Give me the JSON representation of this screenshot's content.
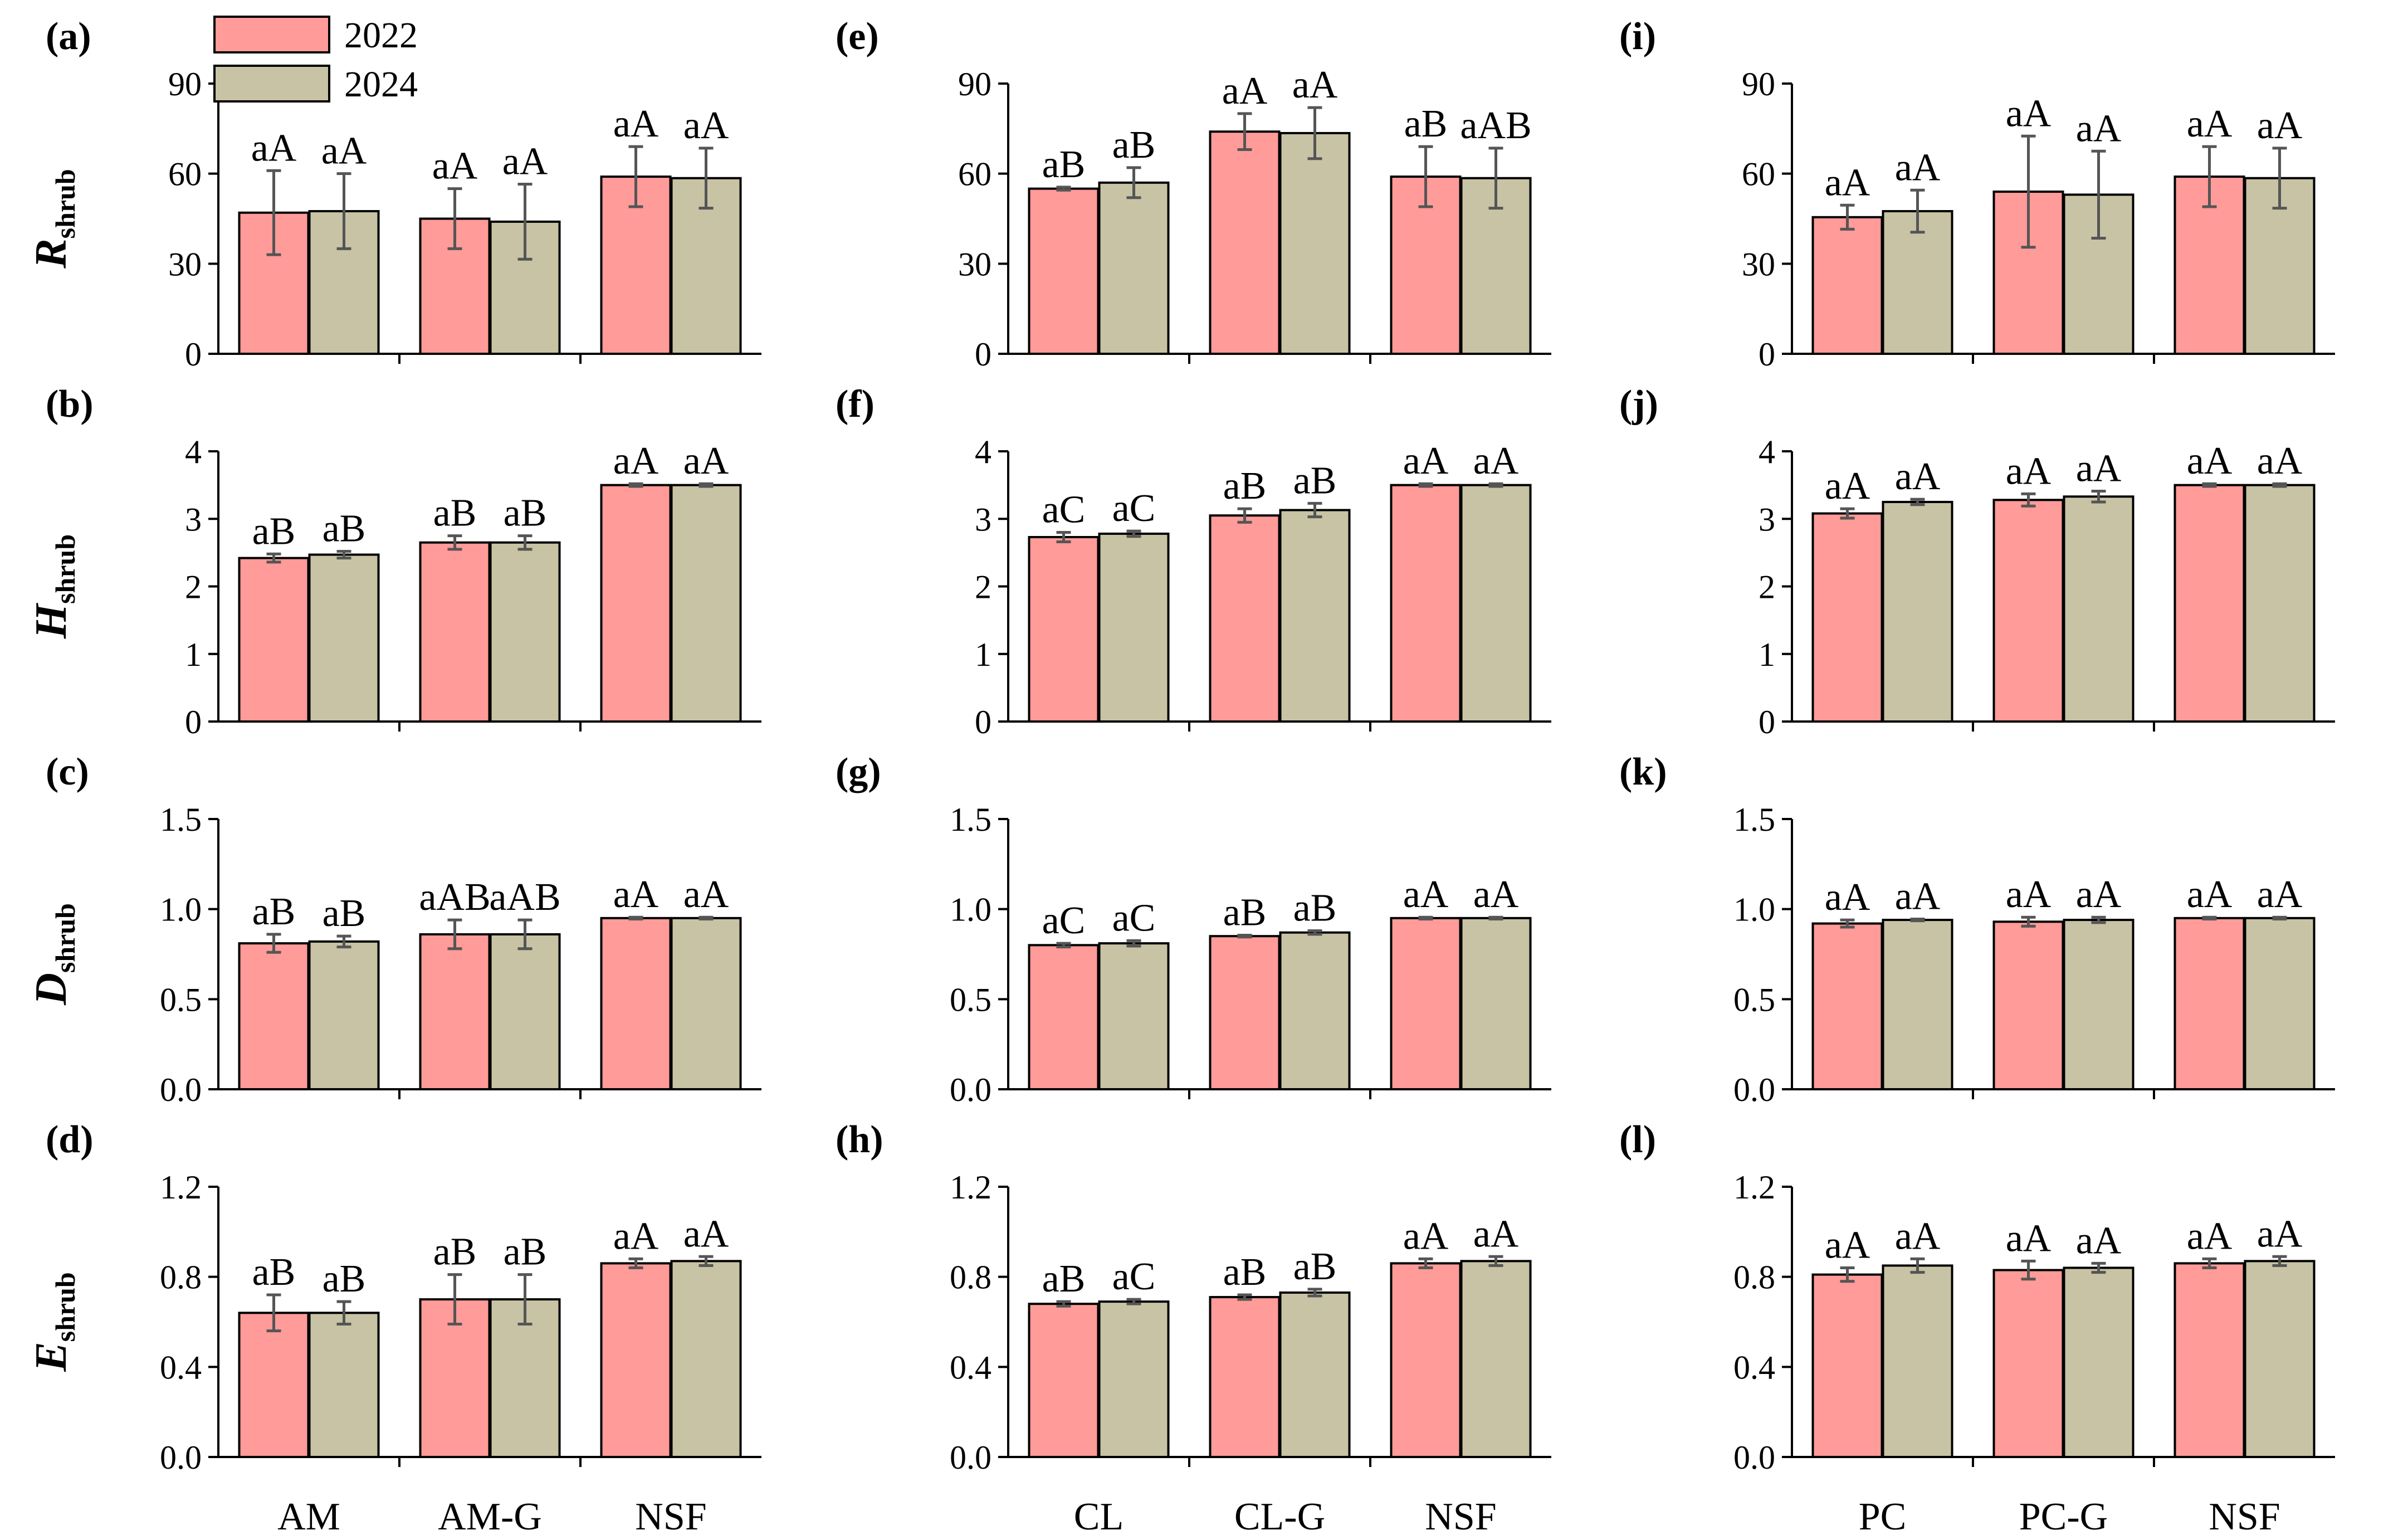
{
  "colors": {
    "y2022": "#FF9B98",
    "y2024": "#C7C3A4",
    "axis": "#000000",
    "error": "#555555"
  },
  "legend": {
    "items": [
      {
        "label": "2022",
        "color": "#FF9B98"
      },
      {
        "label": "2024",
        "color": "#C7C3A4"
      }
    ]
  },
  "chart_data": [
    {
      "type": "bar",
      "panel": "(a)",
      "ylabel": "R",
      "ylabel_sub": "shrub",
      "ylim": [
        0,
        90
      ],
      "yticks": [
        "0",
        "30",
        "60",
        "90"
      ],
      "categories": [
        "AM",
        "AM-G",
        "NSF"
      ],
      "series": [
        {
          "name": "2022",
          "values": [
            47,
            45,
            59
          ],
          "errors": [
            14,
            10,
            10
          ],
          "labels": [
            "aA",
            "aA",
            "aA"
          ]
        },
        {
          "name": "2024",
          "values": [
            47.5,
            44,
            58.5
          ],
          "errors": [
            12.5,
            12.5,
            10
          ],
          "labels": [
            "aA",
            "aA",
            "aA"
          ]
        }
      ]
    },
    {
      "type": "bar",
      "panel": "(b)",
      "ylabel": "H",
      "ylabel_sub": "shrub",
      "ylim": [
        0,
        4
      ],
      "yticks": [
        "0",
        "1",
        "2",
        "3",
        "4"
      ],
      "categories": [
        "AM",
        "AM-G",
        "NSF"
      ],
      "series": [
        {
          "name": "2022",
          "values": [
            2.42,
            2.65,
            3.5
          ],
          "errors": [
            0.06,
            0.1,
            0.02
          ],
          "labels": [
            "aB",
            "aB",
            "aA"
          ]
        },
        {
          "name": "2024",
          "values": [
            2.47,
            2.65,
            3.5
          ],
          "errors": [
            0.05,
            0.1,
            0.02
          ],
          "labels": [
            "aB",
            "aB",
            "aA"
          ]
        }
      ]
    },
    {
      "type": "bar",
      "panel": "(c)",
      "ylabel": "D",
      "ylabel_sub": "shrub",
      "ylim": [
        0,
        1.5
      ],
      "yticks": [
        "0.0",
        "0.5",
        "1.0",
        "1.5"
      ],
      "categories": [
        "AM",
        "AM-G",
        "NSF"
      ],
      "series": [
        {
          "name": "2022",
          "values": [
            0.81,
            0.86,
            0.95
          ],
          "errors": [
            0.05,
            0.08,
            0.005
          ],
          "labels": [
            "aB",
            "aAB",
            "aA"
          ]
        },
        {
          "name": "2024",
          "values": [
            0.82,
            0.86,
            0.95
          ],
          "errors": [
            0.03,
            0.08,
            0.005
          ],
          "labels": [
            "aB",
            "aAB",
            "aA"
          ]
        }
      ]
    },
    {
      "type": "bar",
      "panel": "(d)",
      "ylabel": "E",
      "ylabel_sub": "shrub",
      "ylim": [
        0,
        1.2
      ],
      "yticks": [
        "0.0",
        "0.4",
        "0.8",
        "1.2"
      ],
      "categories": [
        "AM",
        "AM-G",
        "NSF"
      ],
      "series": [
        {
          "name": "2022",
          "values": [
            0.64,
            0.7,
            0.86
          ],
          "errors": [
            0.08,
            0.11,
            0.02
          ],
          "labels": [
            "aB",
            "aB",
            "aA"
          ]
        },
        {
          "name": "2024",
          "values": [
            0.64,
            0.7,
            0.87
          ],
          "errors": [
            0.05,
            0.11,
            0.02
          ],
          "labels": [
            "aB",
            "aB",
            "aA"
          ]
        }
      ]
    },
    {
      "type": "bar",
      "panel": "(e)",
      "ylabel": "",
      "ylabel_sub": "",
      "ylim": [
        0,
        90
      ],
      "yticks": [
        "0",
        "30",
        "60",
        "90"
      ],
      "categories": [
        "CL",
        "CL-G",
        "NSF"
      ],
      "series": [
        {
          "name": "2022",
          "values": [
            55,
            74,
            59
          ],
          "errors": [
            0.5,
            6,
            10
          ],
          "labels": [
            "aB",
            "aA",
            "aB"
          ]
        },
        {
          "name": "2024",
          "values": [
            57,
            73.5,
            58.5
          ],
          "errors": [
            5,
            8.5,
            10
          ],
          "labels": [
            "aB",
            "aA",
            "aAB"
          ]
        }
      ]
    },
    {
      "type": "bar",
      "panel": "(f)",
      "ylabel": "",
      "ylabel_sub": "",
      "ylim": [
        0,
        4
      ],
      "yticks": [
        "0",
        "1",
        "2",
        "3",
        "4"
      ],
      "categories": [
        "CL",
        "CL-G",
        "NSF"
      ],
      "series": [
        {
          "name": "2022",
          "values": [
            2.73,
            3.05,
            3.5
          ],
          "errors": [
            0.07,
            0.1,
            0.02
          ],
          "labels": [
            "aC",
            "aB",
            "aA"
          ]
        },
        {
          "name": "2024",
          "values": [
            2.78,
            3.13,
            3.5
          ],
          "errors": [
            0.04,
            0.1,
            0.02
          ],
          "labels": [
            "aC",
            "aB",
            "aA"
          ]
        }
      ]
    },
    {
      "type": "bar",
      "panel": "(g)",
      "ylabel": "",
      "ylabel_sub": "",
      "ylim": [
        0,
        1.5
      ],
      "yticks": [
        "0.0",
        "0.5",
        "1.0",
        "1.5"
      ],
      "categories": [
        "CL",
        "CL-G",
        "NSF"
      ],
      "series": [
        {
          "name": "2022",
          "values": [
            0.8,
            0.85,
            0.95
          ],
          "errors": [
            0.01,
            0.005,
            0.005
          ],
          "labels": [
            "aC",
            "aB",
            "aA"
          ]
        },
        {
          "name": "2024",
          "values": [
            0.81,
            0.87,
            0.95
          ],
          "errors": [
            0.015,
            0.01,
            0.005
          ],
          "labels": [
            "aC",
            "aB",
            "aA"
          ]
        }
      ]
    },
    {
      "type": "bar",
      "panel": "(h)",
      "ylabel": "",
      "ylabel_sub": "",
      "ylim": [
        0,
        1.2
      ],
      "yticks": [
        "0.0",
        "0.4",
        "0.8",
        "1.2"
      ],
      "categories": [
        "CL",
        "CL-G",
        "NSF"
      ],
      "series": [
        {
          "name": "2022",
          "values": [
            0.68,
            0.71,
            0.86
          ],
          "errors": [
            0.01,
            0.01,
            0.02
          ],
          "labels": [
            "aB",
            "aB",
            "aA"
          ]
        },
        {
          "name": "2024",
          "values": [
            0.69,
            0.73,
            0.87
          ],
          "errors": [
            0.01,
            0.015,
            0.02
          ],
          "labels": [
            "aC",
            "aB",
            "aA"
          ]
        }
      ]
    },
    {
      "type": "bar",
      "panel": "(i)",
      "ylabel": "",
      "ylabel_sub": "",
      "ylim": [
        0,
        90
      ],
      "yticks": [
        "0",
        "30",
        "60",
        "90"
      ],
      "categories": [
        "PC",
        "PC-G",
        "NSF"
      ],
      "series": [
        {
          "name": "2022",
          "values": [
            45.5,
            54,
            59
          ],
          "errors": [
            4,
            18.5,
            10
          ],
          "labels": [
            "aA",
            "aA",
            "aA"
          ]
        },
        {
          "name": "2024",
          "values": [
            47.5,
            53,
            58.5
          ],
          "errors": [
            7,
            14.5,
            10
          ],
          "labels": [
            "aA",
            "aA",
            "aA"
          ]
        }
      ]
    },
    {
      "type": "bar",
      "panel": "(j)",
      "ylabel": "",
      "ylabel_sub": "",
      "ylim": [
        0,
        4
      ],
      "yticks": [
        "0",
        "1",
        "2",
        "3",
        "4"
      ],
      "categories": [
        "PC",
        "PC-G",
        "NSF"
      ],
      "series": [
        {
          "name": "2022",
          "values": [
            3.08,
            3.28,
            3.5
          ],
          "errors": [
            0.07,
            0.09,
            0.02
          ],
          "labels": [
            "aA",
            "aA",
            "aA"
          ]
        },
        {
          "name": "2024",
          "values": [
            3.25,
            3.33,
            3.5
          ],
          "errors": [
            0.04,
            0.08,
            0.02
          ],
          "labels": [
            "aA",
            "aA",
            "aA"
          ]
        }
      ]
    },
    {
      "type": "bar",
      "panel": "(k)",
      "ylabel": "",
      "ylabel_sub": "",
      "ylim": [
        0,
        1.5
      ],
      "yticks": [
        "0.0",
        "0.5",
        "1.0",
        "1.5"
      ],
      "categories": [
        "PC",
        "PC-G",
        "NSF"
      ],
      "series": [
        {
          "name": "2022",
          "values": [
            0.92,
            0.93,
            0.95
          ],
          "errors": [
            0.02,
            0.025,
            0.005
          ],
          "labels": [
            "aA",
            "aA",
            "aA"
          ]
        },
        {
          "name": "2024",
          "values": [
            0.94,
            0.94,
            0.95
          ],
          "errors": [
            0.005,
            0.015,
            0.005
          ],
          "labels": [
            "aA",
            "aA",
            "aA"
          ]
        }
      ]
    },
    {
      "type": "bar",
      "panel": "(l)",
      "ylabel": "",
      "ylabel_sub": "",
      "ylim": [
        0,
        1.2
      ],
      "yticks": [
        "0.0",
        "0.4",
        "0.8",
        "1.2"
      ],
      "categories": [
        "PC",
        "PC-G",
        "NSF"
      ],
      "series": [
        {
          "name": "2022",
          "values": [
            0.81,
            0.83,
            0.86
          ],
          "errors": [
            0.03,
            0.04,
            0.02
          ],
          "labels": [
            "aA",
            "aA",
            "aA"
          ]
        },
        {
          "name": "2024",
          "values": [
            0.85,
            0.84,
            0.87
          ],
          "errors": [
            0.03,
            0.02,
            0.02
          ],
          "labels": [
            "aA",
            "aA",
            "aA"
          ]
        }
      ]
    }
  ]
}
